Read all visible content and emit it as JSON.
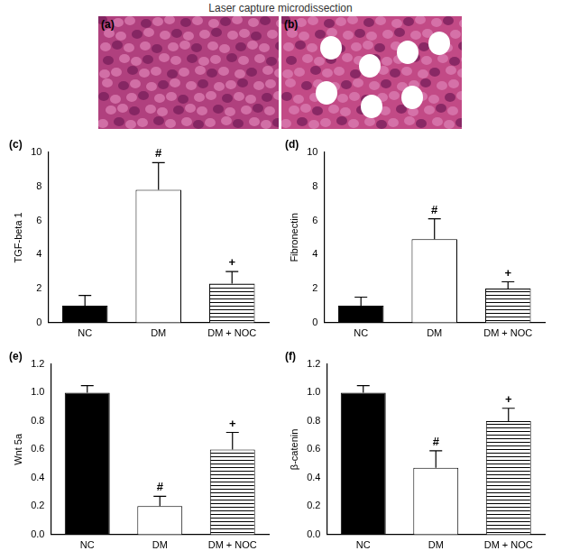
{
  "title": "Laser capture microdissection",
  "image_panels": [
    {
      "label": "(a)"
    },
    {
      "label": "(b)"
    }
  ],
  "chart_data": [
    {
      "type": "bar",
      "panel": "(c)",
      "y_label": "TGF-beta 1",
      "categories": [
        "NC",
        "DM",
        "DM + NOC"
      ],
      "values": [
        1.0,
        7.8,
        2.3
      ],
      "errors": [
        0.6,
        1.6,
        0.7
      ],
      "annotations": [
        null,
        "#",
        "+"
      ],
      "colors": [
        "#000000",
        "#ffffff",
        "#000000"
      ],
      "ylim": [
        0,
        10
      ],
      "yticks": [
        0,
        2,
        4,
        6,
        8,
        10
      ],
      "grid": false
    },
    {
      "type": "bar",
      "panel": "(d)",
      "y_label": "Fibronectin",
      "categories": [
        "NC",
        "DM",
        "DM + NOC"
      ],
      "values": [
        1.0,
        4.9,
        2.0
      ],
      "errors": [
        0.5,
        1.2,
        0.4
      ],
      "annotations": [
        null,
        "#",
        "+"
      ],
      "colors": [
        "#000000",
        "#ffffff",
        "#000000"
      ],
      "ylim": [
        0,
        10
      ],
      "yticks": [
        0,
        2,
        4,
        6,
        8,
        10
      ],
      "grid": false
    },
    {
      "type": "bar",
      "panel": "(e)",
      "y_label": "Wnt 5a",
      "categories": [
        "NC",
        "DM",
        "DM + NOC"
      ],
      "values": [
        1.0,
        0.2,
        0.6
      ],
      "errors": [
        0.05,
        0.07,
        0.12
      ],
      "annotations": [
        null,
        "#",
        "+"
      ],
      "colors": [
        "#000000",
        "#ffffff",
        "#000000"
      ],
      "ylim": [
        0,
        1.2
      ],
      "yticks": [
        {
          "value": 0,
          "label": "0.0"
        },
        0.2,
        0.4,
        0.6,
        0.8,
        {
          "value": 1,
          "label": "1.0"
        },
        1.2
      ],
      "grid": false
    },
    {
      "type": "bar",
      "panel": "(f)",
      "y_label": "β-catenin",
      "categories": [
        "NC",
        "DM",
        "DM + NOC"
      ],
      "values": [
        1.0,
        0.47,
        0.8
      ],
      "errors": [
        0.05,
        0.12,
        0.09
      ],
      "annotations": [
        null,
        "#",
        "+"
      ],
      "colors": [
        "#000000",
        "#ffffff",
        "#000000"
      ],
      "ylim": [
        0,
        1.2
      ],
      "yticks": [
        {
          "value": 0,
          "label": "0.0"
        },
        0.2,
        0.4,
        0.6,
        0.8,
        {
          "value": 1,
          "label": "1.0"
        },
        1.2
      ],
      "grid": false
    }
  ]
}
